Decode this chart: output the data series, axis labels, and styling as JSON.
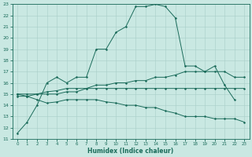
{
  "xlabel": "Humidex (Indice chaleur)",
  "ylabel": "",
  "background_color": "#c9e8e2",
  "grid_color": "#a8cec8",
  "line_color": "#1a6b5a",
  "xlim": [
    -0.5,
    23.5
  ],
  "ylim": [
    11,
    23
  ],
  "xticks": [
    0,
    1,
    2,
    3,
    4,
    5,
    6,
    7,
    8,
    9,
    10,
    11,
    12,
    13,
    14,
    15,
    16,
    17,
    18,
    19,
    20,
    21,
    22,
    23
  ],
  "yticks": [
    11,
    12,
    13,
    14,
    15,
    16,
    17,
    18,
    19,
    20,
    21,
    22,
    23
  ],
  "series": [
    {
      "x": [
        0,
        1,
        2,
        3,
        4,
        5,
        6,
        7,
        8,
        9,
        10,
        11,
        12,
        13,
        14,
        15,
        16,
        17,
        18,
        19,
        20,
        21,
        22
      ],
      "y": [
        11.5,
        12.5,
        14.0,
        16.0,
        16.5,
        16.0,
        16.5,
        16.5,
        19.0,
        19.0,
        20.5,
        21.0,
        22.8,
        22.8,
        23.0,
        22.8,
        21.8,
        17.5,
        17.5,
        17.0,
        17.5,
        15.8,
        14.5
      ]
    },
    {
      "x": [
        0,
        1,
        2,
        3,
        4,
        5,
        6,
        7,
        8,
        9,
        10,
        11,
        12,
        13,
        14,
        15,
        16,
        17,
        18,
        19,
        20,
        21,
        22,
        23
      ],
      "y": [
        15.0,
        15.0,
        15.0,
        15.2,
        15.3,
        15.5,
        15.5,
        15.5,
        15.8,
        15.8,
        16.0,
        16.0,
        16.2,
        16.2,
        16.5,
        16.5,
        16.7,
        17.0,
        17.0,
        17.0,
        17.0,
        17.0,
        16.5,
        16.5
      ]
    },
    {
      "x": [
        0,
        1,
        2,
        3,
        4,
        5,
        6,
        7,
        8,
        9,
        10,
        11,
        12,
        13,
        14,
        15,
        16,
        17,
        18,
        19,
        20,
        21,
        22,
        23
      ],
      "y": [
        14.8,
        14.8,
        15.0,
        15.0,
        15.0,
        15.2,
        15.2,
        15.5,
        15.5,
        15.5,
        15.5,
        15.5,
        15.5,
        15.5,
        15.5,
        15.5,
        15.5,
        15.5,
        15.5,
        15.5,
        15.5,
        15.5,
        15.5,
        15.5
      ]
    },
    {
      "x": [
        0,
        1,
        2,
        3,
        4,
        5,
        6,
        7,
        8,
        9,
        10,
        11,
        12,
        13,
        14,
        15,
        16,
        17,
        18,
        19,
        20,
        21,
        22,
        23
      ],
      "y": [
        15.0,
        14.8,
        14.5,
        14.2,
        14.3,
        14.5,
        14.5,
        14.5,
        14.5,
        14.3,
        14.2,
        14.0,
        14.0,
        13.8,
        13.8,
        13.5,
        13.3,
        13.0,
        13.0,
        13.0,
        12.8,
        12.8,
        12.8,
        12.5
      ]
    }
  ]
}
